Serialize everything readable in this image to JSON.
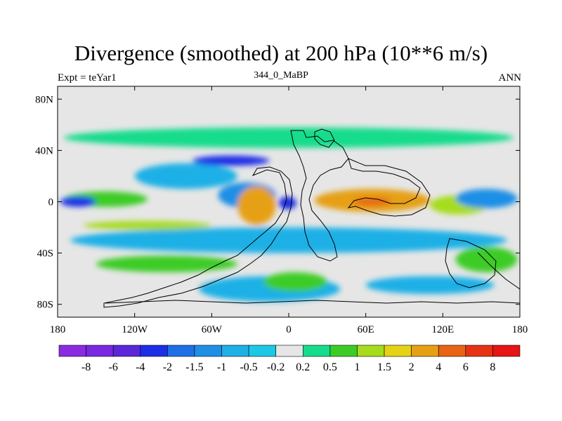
{
  "chart_data": {
    "type": "heatmap",
    "title": "Divergence (smoothed) at 200 hPa (10**6 m/s)",
    "subtitle_left": "Expt = teYar1",
    "subtitle_center": "344_0_MaBP",
    "subtitle_right": "ANN",
    "x_ticks": [
      "180",
      "120W",
      "60W",
      "0",
      "60E",
      "120E",
      "180"
    ],
    "x_tick_values": [
      -180,
      -120,
      -60,
      0,
      60,
      120,
      180
    ],
    "y_ticks": [
      "80N",
      "40N",
      "0",
      "40S",
      "80S"
    ],
    "y_tick_values": [
      80,
      40,
      0,
      -40,
      -80
    ],
    "xlim": [
      -180,
      180
    ],
    "ylim": [
      -90,
      90
    ],
    "colorbar_labels": [
      "-8",
      "-6",
      "-4",
      "-2",
      "-1.5",
      "-1",
      "-0.5",
      "-0.2",
      "0.2",
      "0.5",
      "1",
      "1.5",
      "2",
      "4",
      "6",
      "8"
    ],
    "colorbar_colors": [
      "#8a2be2",
      "#7a28e0",
      "#5a28d8",
      "#1e2ee6",
      "#1f6fe6",
      "#1f8fe6",
      "#1fb0e6",
      "#1cc8e6",
      "#e6e6e6",
      "#14dc8c",
      "#3ccc28",
      "#a6dc1c",
      "#e6d214",
      "#e6a014",
      "#e66414",
      "#e63214",
      "#e61414"
    ],
    "field": [
      {
        "level": 0.3,
        "lon": [
          -175,
          175
        ],
        "lat": [
          42,
          58
        ],
        "comment": "northern midlatitude band"
      },
      {
        "level": 0.7,
        "lon": [
          -175,
          -110
        ],
        "lat": [
          -4,
          8
        ]
      },
      {
        "level": -3,
        "lon": [
          -178,
          -150
        ],
        "lat": [
          -4,
          4
        ]
      },
      {
        "level": -0.8,
        "lon": [
          -120,
          -40
        ],
        "lat": [
          10,
          30
        ]
      },
      {
        "level": -3,
        "lon": [
          -75,
          -15
        ],
        "lat": [
          28,
          36
        ]
      },
      {
        "level": -1.2,
        "lon": [
          -55,
          -10
        ],
        "lat": [
          -5,
          15
        ]
      },
      {
        "level": 5,
        "lon": [
          -30,
          -10
        ],
        "lat": [
          -10,
          6
        ]
      },
      {
        "level": 2.5,
        "lon": [
          -40,
          -10
        ],
        "lat": [
          -18,
          12
        ]
      },
      {
        "level": -3,
        "lon": [
          -8,
          6
        ],
        "lat": [
          -6,
          4
        ]
      },
      {
        "level": 3,
        "lon": [
          20,
          110
        ],
        "lat": [
          -8,
          10
        ]
      },
      {
        "level": 5,
        "lon": [
          50,
          80
        ],
        "lat": [
          -3,
          3
        ]
      },
      {
        "level": 1.2,
        "lon": [
          110,
          155
        ],
        "lat": [
          -10,
          5
        ]
      },
      {
        "level": -1.2,
        "lon": [
          130,
          178
        ],
        "lat": [
          -5,
          10
        ]
      },
      {
        "level": -0.8,
        "lon": [
          -170,
          170
        ],
        "lat": [
          -40,
          -20
        ]
      },
      {
        "level": 1,
        "lon": [
          -160,
          -60
        ],
        "lat": [
          -22,
          -15
        ]
      },
      {
        "level": 0.7,
        "lon": [
          -150,
          -40
        ],
        "lat": [
          -55,
          -42
        ]
      },
      {
        "level": -0.6,
        "lon": [
          -70,
          40
        ],
        "lat": [
          -78,
          -58
        ]
      },
      {
        "level": 0.5,
        "lon": [
          -20,
          30
        ],
        "lat": [
          -70,
          -55
        ]
      },
      {
        "level": -0.6,
        "lon": [
          60,
          160
        ],
        "lat": [
          -72,
          -58
        ]
      },
      {
        "level": 0.8,
        "lon": [
          130,
          178
        ],
        "lat": [
          -55,
          -35
        ]
      }
    ]
  }
}
